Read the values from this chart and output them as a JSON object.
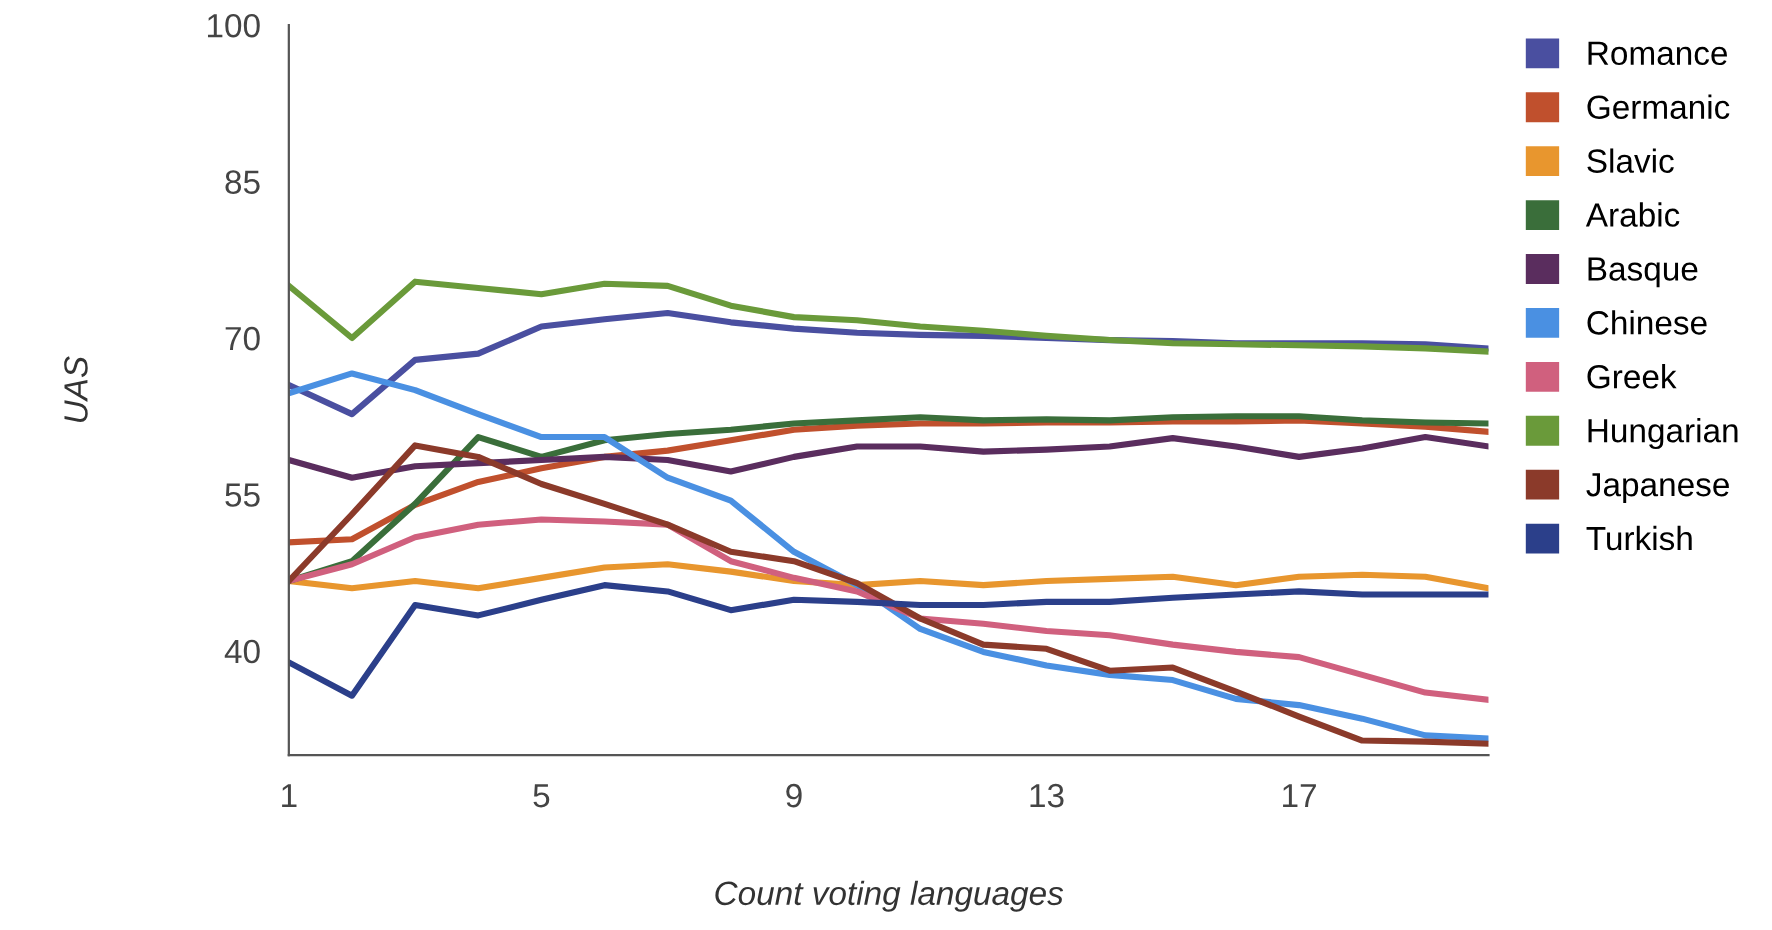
{
  "chart_data": {
    "type": "line",
    "xlabel": "Count voting languages",
    "ylabel": "UAS",
    "x": [
      1,
      2,
      3,
      4,
      5,
      6,
      7,
      8,
      9,
      10,
      11,
      12,
      13,
      14,
      15,
      16,
      17,
      18,
      19,
      20
    ],
    "xlim": [
      1,
      20
    ],
    "xticks": [
      1,
      5,
      9,
      13,
      17
    ],
    "ylim": [
      30,
      100
    ],
    "yticks": [
      40,
      55,
      70,
      85,
      100
    ],
    "grid": false,
    "legend": "right",
    "marker": "none",
    "line_style": "solid",
    "series": [
      {
        "name": "Romance",
        "color": "#4a4fa0",
        "values": [
          65.5,
          62.7,
          67.9,
          68.5,
          71.1,
          71.8,
          72.4,
          71.5,
          70.9,
          70.5,
          70.3,
          70.2,
          70.0,
          69.8,
          69.7,
          69.5,
          69.5,
          69.5,
          69.4,
          69.0
        ]
      },
      {
        "name": "Germanic",
        "color": "#c0502d",
        "values": [
          50.4,
          50.7,
          54.0,
          56.2,
          57.5,
          58.6,
          59.2,
          60.2,
          61.2,
          61.6,
          61.8,
          61.8,
          61.9,
          61.9,
          62.0,
          62.0,
          62.1,
          61.8,
          61.5,
          61.0
        ]
      },
      {
        "name": "Slavic",
        "color": "#e8962e",
        "values": [
          46.7,
          46.0,
          46.7,
          46.0,
          47.0,
          48.0,
          48.3,
          47.6,
          46.7,
          46.3,
          46.7,
          46.3,
          46.7,
          46.9,
          47.1,
          46.3,
          47.1,
          47.3,
          47.1,
          46.0
        ]
      },
      {
        "name": "Arabic",
        "color": "#3a6e3a",
        "values": [
          46.7,
          48.6,
          54.1,
          60.5,
          58.6,
          60.2,
          60.8,
          61.2,
          61.8,
          62.1,
          62.4,
          62.1,
          62.2,
          62.1,
          62.4,
          62.5,
          62.5,
          62.1,
          61.9,
          61.8
        ]
      },
      {
        "name": "Basque",
        "color": "#5a2d5e",
        "values": [
          58.3,
          56.6,
          57.7,
          58.0,
          58.3,
          58.6,
          58.3,
          57.2,
          58.6,
          59.6,
          59.6,
          59.1,
          59.3,
          59.6,
          60.4,
          59.6,
          58.6,
          59.4,
          60.5,
          59.6
        ]
      },
      {
        "name": "Chinese",
        "color": "#4a90e2",
        "values": [
          64.7,
          66.6,
          65.0,
          62.7,
          60.5,
          60.5,
          56.6,
          54.4,
          49.5,
          46.3,
          42.1,
          39.9,
          38.6,
          37.7,
          37.2,
          35.4,
          34.8,
          33.5,
          31.9,
          31.6
        ]
      },
      {
        "name": "Greek",
        "color": "#d0607e",
        "values": [
          46.7,
          48.3,
          50.9,
          52.1,
          52.6,
          52.4,
          52.1,
          48.6,
          47.0,
          45.7,
          43.1,
          42.6,
          41.9,
          41.5,
          40.6,
          39.9,
          39.4,
          37.7,
          36.0,
          35.3
        ]
      },
      {
        "name": "Hungarian",
        "color": "#6a9a3a",
        "values": [
          75.0,
          70.0,
          75.4,
          74.8,
          74.2,
          75.2,
          75.0,
          73.1,
          72.0,
          71.7,
          71.1,
          70.7,
          70.2,
          69.8,
          69.5,
          69.4,
          69.3,
          69.2,
          69.0,
          68.7
        ]
      },
      {
        "name": "Japanese",
        "color": "#8b3a2a",
        "values": [
          46.7,
          53.1,
          59.7,
          58.6,
          56.0,
          54.1,
          52.1,
          49.5,
          48.6,
          46.5,
          43.1,
          40.6,
          40.2,
          38.1,
          38.4,
          36.1,
          33.7,
          31.4,
          31.3,
          31.1
        ]
      },
      {
        "name": "Turkish",
        "color": "#2b3f8a",
        "values": [
          38.9,
          35.7,
          44.4,
          43.4,
          44.9,
          46.3,
          45.7,
          43.9,
          44.9,
          44.7,
          44.4,
          44.4,
          44.7,
          44.7,
          45.1,
          45.4,
          45.7,
          45.4,
          45.4,
          45.4
        ]
      }
    ]
  }
}
